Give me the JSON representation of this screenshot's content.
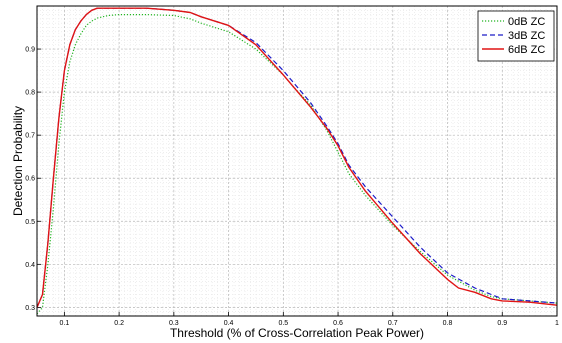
{
  "chart_data": {
    "type": "line",
    "xlabel": "Threshold (% of Cross-Correlation Peak Power)",
    "ylabel": "Detection Probability",
    "xlim": [
      0.05,
      1.0
    ],
    "ylim": [
      0.28,
      1.0
    ],
    "xticks": [
      "0.1",
      "0.2",
      "0.3",
      "0.4",
      "0.5",
      "0.6",
      "0.7",
      "0.8",
      "0.9",
      "1"
    ],
    "yticks": [
      "0.3",
      "0.4",
      "0.5",
      "0.6",
      "0.7",
      "0.8",
      "0.9"
    ],
    "grid": true,
    "legend_position": "top-right",
    "series": [
      {
        "name": "0dB ZC",
        "color": "#22b422",
        "dash": "dotted",
        "x": [
          0.05,
          0.06,
          0.07,
          0.08,
          0.09,
          0.1,
          0.11,
          0.12,
          0.13,
          0.14,
          0.15,
          0.16,
          0.18,
          0.2,
          0.25,
          0.3,
          0.33,
          0.35,
          0.4,
          0.45,
          0.5,
          0.52,
          0.55,
          0.58,
          0.6,
          0.62,
          0.65,
          0.7,
          0.75,
          0.8,
          0.85,
          0.88,
          0.9,
          0.95,
          1.0
        ],
        "y": [
          0.285,
          0.3,
          0.4,
          0.53,
          0.68,
          0.8,
          0.87,
          0.91,
          0.935,
          0.955,
          0.965,
          0.972,
          0.978,
          0.98,
          0.98,
          0.978,
          0.97,
          0.96,
          0.94,
          0.9,
          0.84,
          0.81,
          0.77,
          0.71,
          0.66,
          0.61,
          0.56,
          0.49,
          0.43,
          0.375,
          0.34,
          0.325,
          0.32,
          0.315,
          0.31
        ]
      },
      {
        "name": "3dB ZC",
        "color": "#1c1cc8",
        "dash": "dashed",
        "x": [
          0.05,
          0.06,
          0.07,
          0.08,
          0.09,
          0.1,
          0.11,
          0.12,
          0.13,
          0.14,
          0.15,
          0.16,
          0.18,
          0.2,
          0.25,
          0.3,
          0.33,
          0.35,
          0.4,
          0.45,
          0.5,
          0.55,
          0.58,
          0.6,
          0.62,
          0.65,
          0.7,
          0.75,
          0.8,
          0.85,
          0.88,
          0.9,
          0.95,
          1.0
        ],
        "y": [
          0.3,
          0.33,
          0.45,
          0.6,
          0.74,
          0.85,
          0.91,
          0.945,
          0.965,
          0.98,
          0.99,
          0.995,
          0.995,
          0.995,
          0.995,
          0.99,
          0.985,
          0.975,
          0.955,
          0.915,
          0.85,
          0.775,
          0.72,
          0.68,
          0.63,
          0.58,
          0.51,
          0.44,
          0.38,
          0.345,
          0.33,
          0.32,
          0.315,
          0.31
        ]
      },
      {
        "name": "6dB ZC",
        "color": "#e01414",
        "dash": "solid",
        "x": [
          0.05,
          0.06,
          0.07,
          0.08,
          0.09,
          0.1,
          0.11,
          0.12,
          0.13,
          0.14,
          0.15,
          0.16,
          0.18,
          0.2,
          0.25,
          0.3,
          0.33,
          0.35,
          0.4,
          0.45,
          0.5,
          0.55,
          0.58,
          0.6,
          0.62,
          0.65,
          0.7,
          0.75,
          0.8,
          0.82,
          0.85,
          0.88,
          0.9,
          0.95,
          1.0
        ],
        "y": [
          0.3,
          0.33,
          0.45,
          0.6,
          0.74,
          0.85,
          0.91,
          0.945,
          0.965,
          0.98,
          0.99,
          0.995,
          0.995,
          0.995,
          0.995,
          0.99,
          0.985,
          0.975,
          0.955,
          0.91,
          0.84,
          0.765,
          0.715,
          0.675,
          0.625,
          0.57,
          0.495,
          0.425,
          0.365,
          0.345,
          0.335,
          0.32,
          0.315,
          0.312,
          0.305
        ]
      }
    ]
  }
}
